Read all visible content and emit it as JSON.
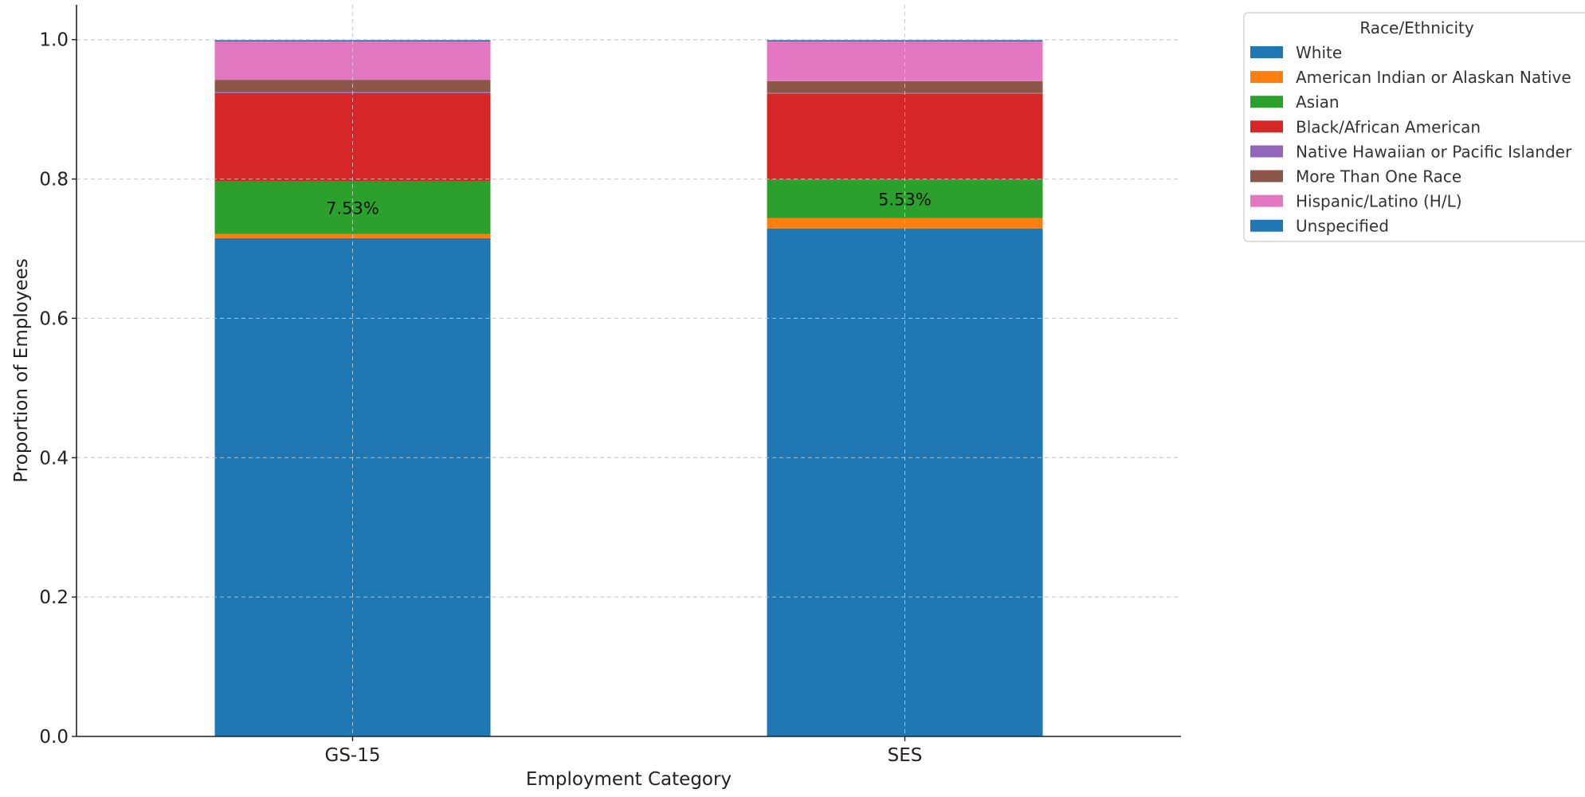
{
  "chart_data": {
    "type": "bar",
    "stacked": true,
    "title": "",
    "xlabel": "Employment Category",
    "ylabel": "Proportion of Employees",
    "categories": [
      "GS-15",
      "SES"
    ],
    "ylim": [
      0,
      1.05
    ],
    "yticks": [
      0.0,
      0.2,
      0.4,
      0.6,
      0.8,
      1.0
    ],
    "ytick_labels": [
      "0.0",
      "0.2",
      "0.4",
      "0.6",
      "0.8",
      "1.0"
    ],
    "grid": true,
    "legend": {
      "title": "Race/Ethnicity",
      "placement": "top-right, outside plot area"
    },
    "series": [
      {
        "name": "White",
        "color": "#1f77b4",
        "values": [
          0.715,
          0.729
        ]
      },
      {
        "name": "American Indian or Alaskan Native",
        "color": "#ff7f0e",
        "values": [
          0.006,
          0.015
        ]
      },
      {
        "name": "Asian",
        "color": "#2ca02c",
        "values": [
          0.0753,
          0.0553
        ]
      },
      {
        "name": "Black/African American",
        "color": "#d62728",
        "values": [
          0.127,
          0.123
        ]
      },
      {
        "name": "Native Hawaiian or Pacific Islander",
        "color": "#9467bd",
        "values": [
          0.002,
          0.001
        ]
      },
      {
        "name": "More Than One Race",
        "color": "#8c564b",
        "values": [
          0.017,
          0.017
        ]
      },
      {
        "name": "Hispanic/Latino (H/L)",
        "color": "#e377c2",
        "values": [
          0.055,
          0.057
        ]
      },
      {
        "name": "Unspecified",
        "color": "#1f77b4",
        "values": [
          0.002,
          0.002
        ]
      }
    ],
    "annotations": [
      {
        "category": "GS-15",
        "series": "Asian",
        "text": "7.53%"
      },
      {
        "category": "SES",
        "series": "Asian",
        "text": "5.53%"
      }
    ]
  }
}
